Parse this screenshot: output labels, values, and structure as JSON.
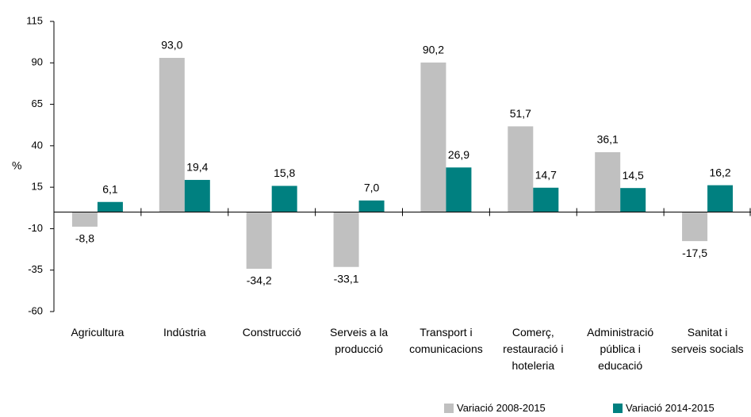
{
  "chart_data": {
    "type": "bar",
    "y_label": "%",
    "categories": [
      "Agricultura",
      "Indústria",
      "Construcció",
      "Serveis a la\nproducció",
      "Transport i\ncomunicacions",
      "Comerç,\nrestauració i\nhoteleria",
      "Administració\npública i\neducació",
      "Sanitat i\nserveis socials"
    ],
    "series": [
      {
        "name": "Variació 2008-2015",
        "color": "#c0c0c0",
        "values": [
          -8.8,
          93.0,
          -34.2,
          -33.1,
          90.2,
          51.7,
          36.1,
          -17.5
        ],
        "value_labels": [
          "-8,8",
          "93,0",
          "-34,2",
          "-33,1",
          "90,2",
          "51,7",
          "36,1",
          "-17,5"
        ]
      },
      {
        "name": "Variació 2014-2015",
        "color": "#008080",
        "values": [
          6.1,
          19.4,
          15.8,
          7.0,
          26.9,
          14.7,
          14.5,
          16.2
        ],
        "value_labels": [
          "6,1",
          "19,4",
          "15,8",
          "7,0",
          "26,9",
          "14,7",
          "14,5",
          "16,2"
        ]
      }
    ],
    "ylim": [
      -60,
      115
    ],
    "yticks": [
      115,
      90,
      65,
      40,
      15,
      -10,
      -35,
      -60
    ],
    "grid": false,
    "legend": "bottom-right"
  }
}
